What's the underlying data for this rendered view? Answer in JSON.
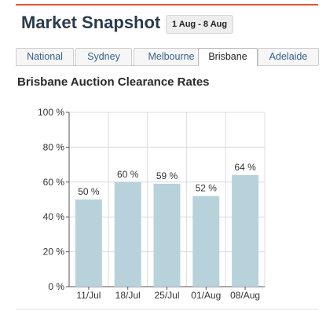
{
  "header": {
    "title": "Market Snapshot",
    "date_range": "1 Aug - 8 Aug",
    "accent_color": "#e8532b"
  },
  "tabs": [
    {
      "label": "National",
      "active": false
    },
    {
      "label": "Sydney",
      "active": false
    },
    {
      "label": "Melbourne",
      "active": false
    },
    {
      "label": "Brisbane",
      "active": true
    },
    {
      "label": "Adelaide",
      "active": false
    }
  ],
  "chart_title": "Brisbane Auction Clearance Rates",
  "chart_data": {
    "type": "bar",
    "title": "Brisbane Auction Clearance Rates",
    "categories": [
      "11/Jul",
      "18/Jul",
      "25/Jul",
      "01/Aug",
      "08/Aug"
    ],
    "values": [
      50,
      60,
      59,
      52,
      64
    ],
    "value_labels": [
      "50 %",
      "60 %",
      "59 %",
      "52 %",
      "64 %"
    ],
    "yticks": [
      "0 %",
      "20 %",
      "40 %",
      "60 %",
      "80 %",
      "100 %"
    ],
    "ylim": [
      0,
      100
    ],
    "grid": true,
    "bar_color": "#b8d2db"
  }
}
